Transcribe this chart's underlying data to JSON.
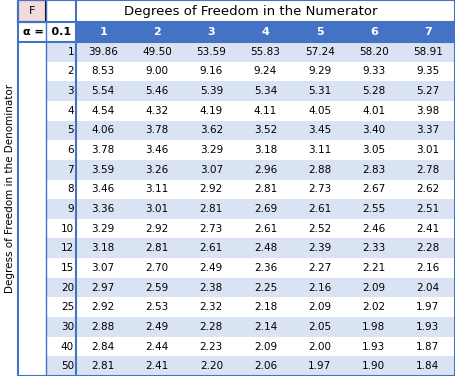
{
  "title": "Degrees of Freedom in the Numerator",
  "f_label": "F",
  "alpha_label": "α =  0.1",
  "col_headers": [
    "1",
    "2",
    "3",
    "4",
    "5",
    "6",
    "7"
  ],
  "row_headers": [
    "1",
    "2",
    "3",
    "4",
    "5",
    "6",
    "7",
    "8",
    "9",
    "10",
    "12",
    "15",
    "20",
    "25",
    "30",
    "40",
    "50"
  ],
  "y_axis_label": "Degress of Freedom in the Denominator",
  "table_data": [
    [
      39.86,
      49.5,
      53.59,
      55.83,
      57.24,
      58.2,
      58.91
    ],
    [
      8.53,
      9.0,
      9.16,
      9.24,
      9.29,
      9.33,
      9.35
    ],
    [
      5.54,
      5.46,
      5.39,
      5.34,
      5.31,
      5.28,
      5.27
    ],
    [
      4.54,
      4.32,
      4.19,
      4.11,
      4.05,
      4.01,
      3.98
    ],
    [
      4.06,
      3.78,
      3.62,
      3.52,
      3.45,
      3.4,
      3.37
    ],
    [
      3.78,
      3.46,
      3.29,
      3.18,
      3.11,
      3.05,
      3.01
    ],
    [
      3.59,
      3.26,
      3.07,
      2.96,
      2.88,
      2.83,
      2.78
    ],
    [
      3.46,
      3.11,
      2.92,
      2.81,
      2.73,
      2.67,
      2.62
    ],
    [
      3.36,
      3.01,
      2.81,
      2.69,
      2.61,
      2.55,
      2.51
    ],
    [
      3.29,
      2.92,
      2.73,
      2.61,
      2.52,
      2.46,
      2.41
    ],
    [
      3.18,
      2.81,
      2.61,
      2.48,
      2.39,
      2.33,
      2.28
    ],
    [
      3.07,
      2.7,
      2.49,
      2.36,
      2.27,
      2.21,
      2.16
    ],
    [
      2.97,
      2.59,
      2.38,
      2.25,
      2.16,
      2.09,
      2.04
    ],
    [
      2.92,
      2.53,
      2.32,
      2.18,
      2.09,
      2.02,
      1.97
    ],
    [
      2.88,
      2.49,
      2.28,
      2.14,
      2.05,
      1.98,
      1.93
    ],
    [
      2.84,
      2.44,
      2.23,
      2.09,
      2.0,
      1.93,
      1.87
    ],
    [
      2.81,
      2.41,
      2.2,
      2.06,
      1.97,
      1.9,
      1.84
    ]
  ],
  "header_bg": "#4472C4",
  "header_text": "#FFFFFF",
  "row_bg_odd": "#DAE3F3",
  "row_bg_even": "#FFFFFF",
  "cell_text": "#000000",
  "f_box_bg": "#F2DCDB",
  "f_box_border": "#000000",
  "f_box_text": "#000000",
  "alpha_bg": "#FFFFFF",
  "alpha_text": "#000000",
  "title_bg": "#FFFFFF",
  "border_color": "#4472C4",
  "divider_color": "#4472C4",
  "font_size": 7.5,
  "header_font_size": 8.0,
  "title_font_size": 9.5
}
